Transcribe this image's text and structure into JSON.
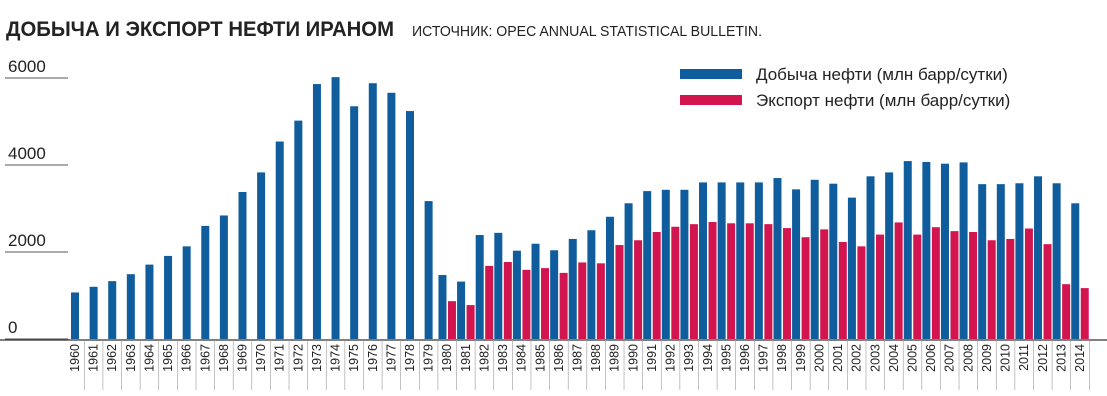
{
  "chart_data": {
    "type": "bar",
    "title": "ДОБЫЧА И ЭКСПОРТ НЕФТИ ИРАНОМ",
    "subtitle": "ИСТОЧНИК: OPEC ANNUAL STATISTICAL BULLETIN.",
    "categories": [
      "1960",
      "1961",
      "1962",
      "1963",
      "1964",
      "1965",
      "1966",
      "1967",
      "1968",
      "1969",
      "1970",
      "1971",
      "1972",
      "1973",
      "1974",
      "1975",
      "1976",
      "1977",
      "1978",
      "1979",
      "1980",
      "1981",
      "1982",
      "1983",
      "1984",
      "1985",
      "1986",
      "1987",
      "1988",
      "1989",
      "1990",
      "1991",
      "1992",
      "1993",
      "1994",
      "1995",
      "1996",
      "1997",
      "1998",
      "1999",
      "2000",
      "2001",
      "2002",
      "2003",
      "2004",
      "2005",
      "2006",
      "2007",
      "2008",
      "2009",
      "2010",
      "2011",
      "2012",
      "2013",
      "2014"
    ],
    "series": [
      {
        "name": "Добыча нефти (млн барр/сутки)",
        "color": "#0f5d9c",
        "values": [
          1070,
          1200,
          1330,
          1490,
          1710,
          1910,
          2130,
          2600,
          2840,
          3380,
          3830,
          4540,
          5020,
          5860,
          6020,
          5350,
          5880,
          5660,
          5240,
          3170,
          1470,
          1320,
          2390,
          2440,
          2030,
          2190,
          2040,
          2300,
          2500,
          2810,
          3120,
          3400,
          3430,
          3430,
          3600,
          3600,
          3600,
          3600,
          3700,
          3440,
          3660,
          3570,
          3250,
          3740,
          3830,
          4090,
          4070,
          4030,
          4060,
          3560,
          3560,
          3580,
          3740,
          3580,
          3120
        ]
      },
      {
        "name": "Экспорт нефти (млн барр/сутки)",
        "color": "#d2154f",
        "values": [
          null,
          null,
          null,
          null,
          null,
          null,
          null,
          null,
          null,
          null,
          null,
          null,
          null,
          null,
          null,
          null,
          null,
          null,
          null,
          null,
          870,
          780,
          1680,
          1770,
          1590,
          1630,
          1520,
          1760,
          1740,
          2160,
          2270,
          2460,
          2580,
          2640,
          2690,
          2660,
          2660,
          2640,
          2550,
          2340,
          2520,
          2230,
          2130,
          2400,
          2680,
          2400,
          2570,
          2480,
          2460,
          2270,
          2300,
          2540,
          2180,
          1260,
          1170
        ]
      }
    ],
    "ylim": [
      0,
      6000
    ],
    "yticks": [
      0,
      2000,
      4000,
      6000
    ]
  }
}
